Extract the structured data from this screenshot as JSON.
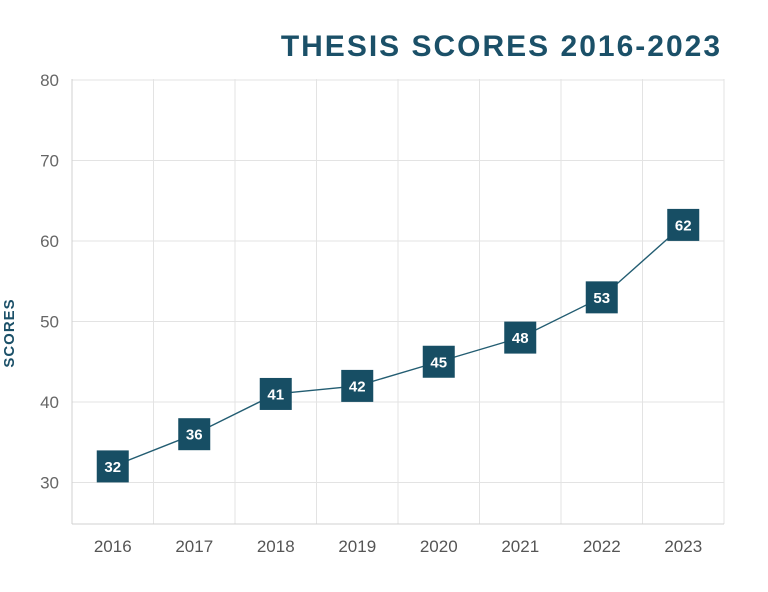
{
  "chart_data": {
    "type": "line",
    "title": "THESIS SCORES 2016-2023",
    "xlabel": "",
    "ylabel": "SCORES",
    "categories": [
      "2016",
      "2017",
      "2018",
      "2019",
      "2020",
      "2021",
      "2022",
      "2023"
    ],
    "series": [
      {
        "values": [
          32,
          36,
          41,
          42,
          45,
          48,
          53,
          62
        ]
      }
    ],
    "ylim": [
      25,
      80
    ],
    "yticks": [
      30,
      40,
      50,
      60,
      70,
      80
    ],
    "grid": true,
    "legend": "none",
    "colors": {
      "title": "#1b5068",
      "line": "#235d72",
      "marker": "#174e64",
      "label_text": "#ffffff"
    }
  }
}
